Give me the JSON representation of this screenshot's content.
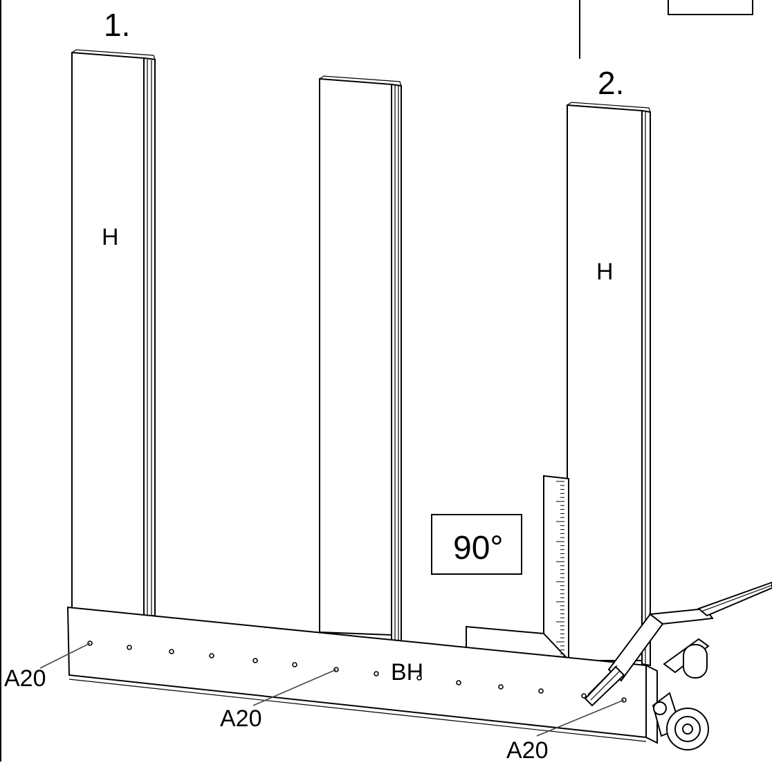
{
  "steps": {
    "step1": "1.",
    "step2": "2."
  },
  "parts": {
    "left_panel": "H",
    "right_panel": "H",
    "base": "BH"
  },
  "callouts": {
    "left": "A20",
    "middle": "A20",
    "right": "A20"
  },
  "angle_label": "90°"
}
